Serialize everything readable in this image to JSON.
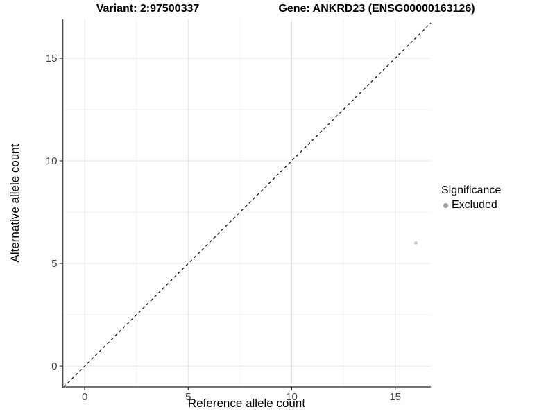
{
  "chart_data": {
    "type": "scatter",
    "title_left": "Variant: 2:97500337",
    "title_right": "Gene: ANKRD23 (ENSG00000163126)",
    "xlabel": "Reference allele count",
    "ylabel": "Alternative allele count",
    "xlim": [
      -1.06,
      16.72
    ],
    "ylim": [
      -1.01,
      16.89
    ],
    "x_ticks": [
      0,
      5,
      10,
      15
    ],
    "y_ticks": [
      0,
      5,
      10,
      15
    ],
    "x_minor_ticks": [
      2.5,
      7.5,
      12.5
    ],
    "y_minor_ticks": [
      2.5,
      7.5,
      12.5
    ],
    "grid": "major and minor, light gray on white",
    "identity_line": {
      "name": "y = x",
      "from": -1.01,
      "to": 16.72,
      "dash": "4 4",
      "color": "#000000"
    },
    "series": [
      {
        "name": "Excluded",
        "color": "#c3c3c3",
        "point_radius": 2.3,
        "points": [
          {
            "x": 16,
            "y": 6
          }
        ]
      }
    ],
    "legend": {
      "title": "Significance",
      "position": "right",
      "items": [
        {
          "label": "Excluded",
          "color": "#9e9e9e"
        }
      ]
    },
    "style": {
      "background": "#ffffff",
      "grid_major": "#e4e4e4",
      "grid_minor": "#f2f2f2",
      "axis_line": "#474747",
      "tick_mark": "#333333",
      "tick_label_color": "#404040",
      "tick_label_size": 15
    }
  }
}
